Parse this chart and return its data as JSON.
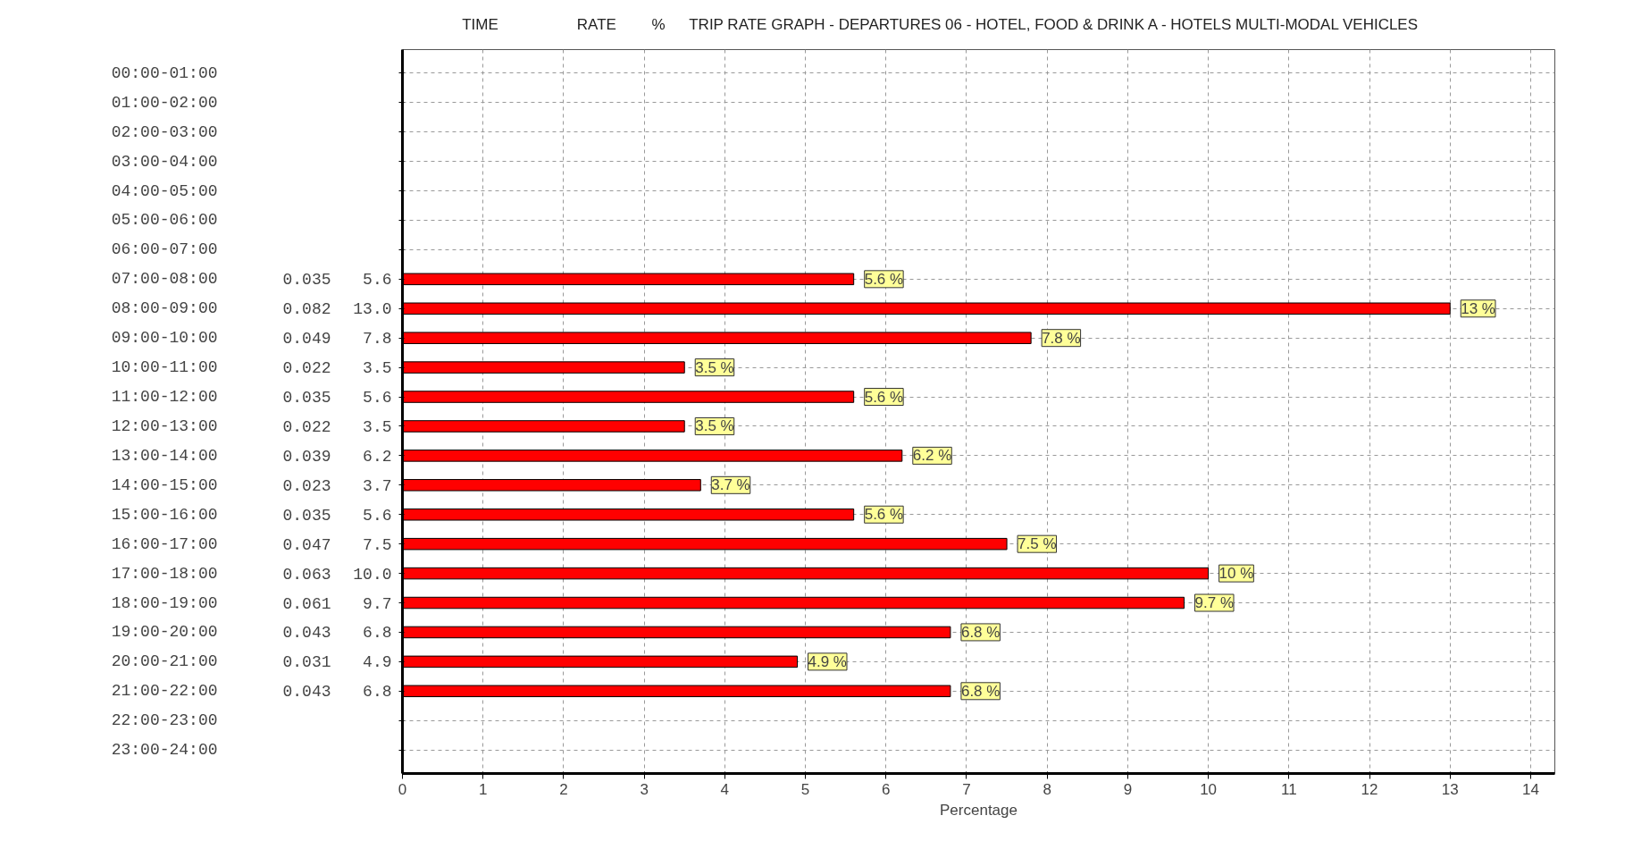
{
  "chart_data": {
    "type": "bar",
    "orientation": "horizontal",
    "title": "TRIP RATE GRAPH - DEPARTURES   06 - HOTEL, FOOD & DRINK   A - HOTELS     MULTI-MODAL  VEHICLES",
    "xlabel": "Percentage",
    "ylabel": "TIME",
    "categories": [
      "00:00-01:00",
      "01:00-02:00",
      "02:00-03:00",
      "03:00-04:00",
      "04:00-05:00",
      "05:00-06:00",
      "06:00-07:00",
      "07:00-08:00",
      "08:00-09:00",
      "09:00-10:00",
      "10:00-11:00",
      "11:00-12:00",
      "12:00-13:00",
      "13:00-14:00",
      "14:00-15:00",
      "15:00-16:00",
      "16:00-17:00",
      "17:00-18:00",
      "18:00-19:00",
      "19:00-20:00",
      "20:00-21:00",
      "21:00-22:00",
      "22:00-23:00",
      "23:00-24:00"
    ],
    "values": [
      null,
      null,
      null,
      null,
      null,
      null,
      null,
      5.6,
      13.0,
      7.8,
      3.5,
      5.6,
      3.5,
      6.2,
      3.7,
      5.6,
      7.5,
      10.0,
      9.7,
      6.8,
      4.9,
      6.8,
      null,
      null
    ],
    "value_labels": [
      null,
      null,
      null,
      null,
      null,
      null,
      null,
      "5.6 %",
      "13 %",
      "7.8 %",
      "3.5 %",
      "5.6 %",
      "3.5 %",
      "6.2 %",
      "3.7 %",
      "5.6 %",
      "7.5 %",
      "10 %",
      "9.7 %",
      "6.8 %",
      "4.9 %",
      "6.8 %",
      null,
      null
    ],
    "color": "#ff0000",
    "xlim": [
      0,
      14.3
    ],
    "xticks": [
      0,
      1,
      2,
      3,
      4,
      5,
      6,
      7,
      8,
      9,
      10,
      11,
      12,
      13,
      14
    ],
    "grid": true,
    "annotations": [
      "RATE",
      "%",
      "0.035",
      "5.6",
      "0.082",
      "13.0",
      "0.049",
      "7.8",
      "0.022",
      "3.5",
      "0.035",
      "5.6",
      "0.022",
      "3.5",
      "0.039",
      "6.2",
      "0.023",
      "3.7",
      "0.035",
      "5.6",
      "0.047",
      "7.5",
      "0.063",
      "10.0",
      "0.061",
      "9.7",
      "0.043",
      "6.8",
      "0.031",
      "4.9",
      "0.043",
      "6.8"
    ]
  }
}
